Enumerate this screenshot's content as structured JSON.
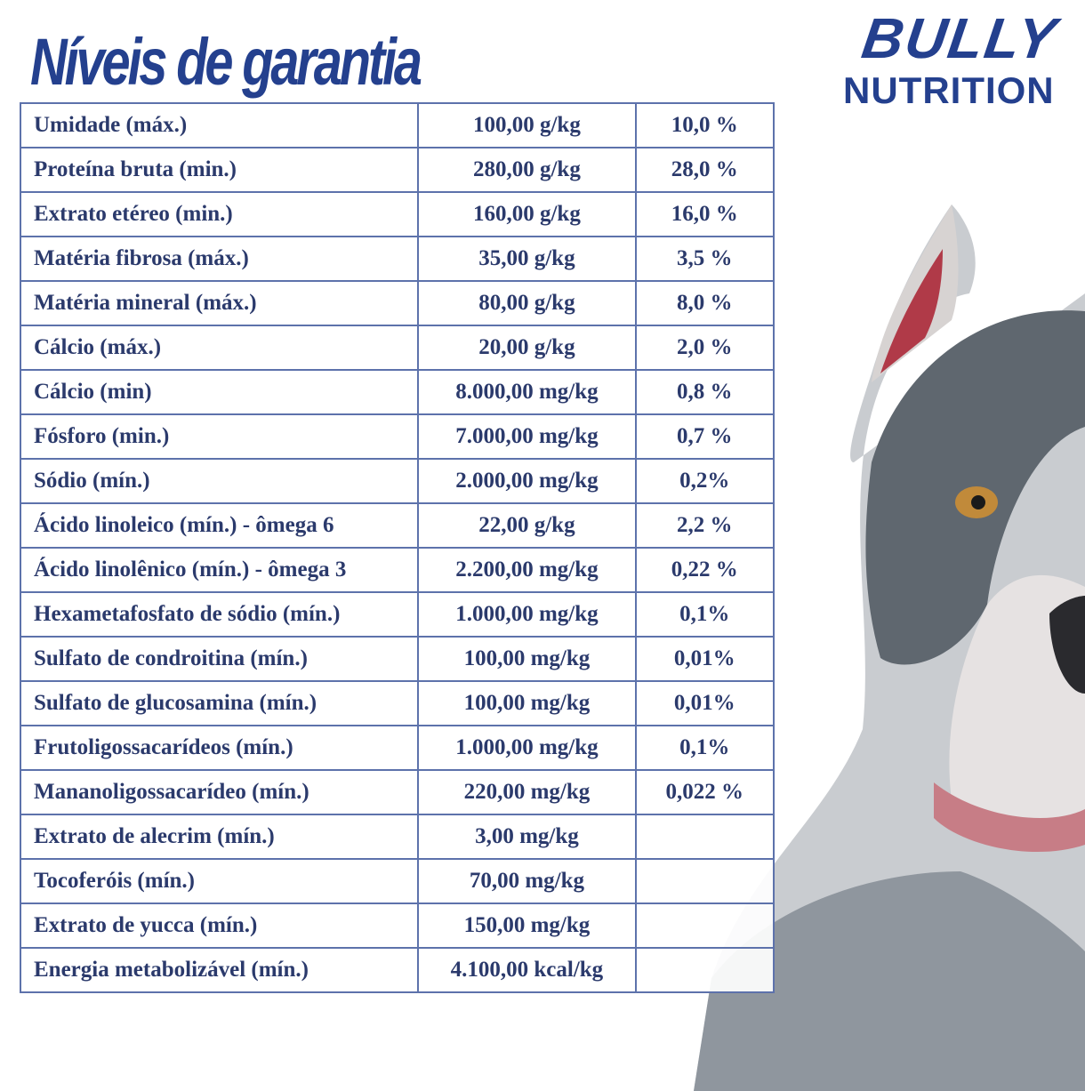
{
  "title": "Níveis de garantia",
  "logo": {
    "line1": "BULLY",
    "line2": "NUTRITION"
  },
  "colors": {
    "brand": "#24408e",
    "text": "#2b3a6c",
    "grid": "#5d72ab"
  },
  "rows": [
    {
      "name": "Umidade (máx.)",
      "amount": "100,00 g/kg",
      "percent": "10,0 %"
    },
    {
      "name": "Proteína bruta (min.)",
      "amount": "280,00 g/kg",
      "percent": "28,0 %"
    },
    {
      "name": "Extrato etéreo (min.)",
      "amount": "160,00 g/kg",
      "percent": "16,0 %"
    },
    {
      "name": "Matéria fibrosa (máx.)",
      "amount": "35,00 g/kg",
      "percent": "3,5 %"
    },
    {
      "name": "Matéria mineral (máx.)",
      "amount": "80,00 g/kg",
      "percent": "8,0 %"
    },
    {
      "name": "Cálcio (máx.)",
      "amount": "20,00 g/kg",
      "percent": "2,0 %"
    },
    {
      "name": "Cálcio (min)",
      "amount": "8.000,00 mg/kg",
      "percent": "0,8 %"
    },
    {
      "name": "Fósforo (min.)",
      "amount": "7.000,00 mg/kg",
      "percent": "0,7 %"
    },
    {
      "name": "Sódio (mín.)",
      "amount": "2.000,00 mg/kg",
      "percent": "0,2%"
    },
    {
      "name": "Ácido linoleico (mín.) - ômega 6",
      "amount": "22,00 g/kg",
      "percent": "2,2 %"
    },
    {
      "name": "Ácido linolênico (mín.) - ômega 3",
      "amount": "2.200,00 mg/kg",
      "percent": "0,22 %"
    },
    {
      "name": "Hexametafosfato de sódio (mín.)",
      "amount": "1.000,00 mg/kg",
      "percent": "0,1%"
    },
    {
      "name": "Sulfato de condroitina (mín.)",
      "amount": "100,00 mg/kg",
      "percent": "0,01%"
    },
    {
      "name": "Sulfato de glucosamina (mín.)",
      "amount": "100,00 mg/kg",
      "percent": "0,01%"
    },
    {
      "name": "Frutoligossacarídeos (mín.)",
      "amount": "1.000,00 mg/kg",
      "percent": "0,1%"
    },
    {
      "name": "Mananoligossacarídeo (mín.)",
      "amount": "220,00 mg/kg",
      "percent": "0,022 %"
    },
    {
      "name": "Extrato de alecrim (mín.)",
      "amount": "3,00 mg/kg",
      "percent": ""
    },
    {
      "name": "Tocoferóis (mín.)",
      "amount": "70,00 mg/kg",
      "percent": ""
    },
    {
      "name": "Extrato de yucca (mín.)",
      "amount": "150,00 mg/kg",
      "percent": ""
    },
    {
      "name": "Energia metabolizável (mín.)",
      "amount": "4.100,00 kcal/kg",
      "percent": ""
    }
  ]
}
